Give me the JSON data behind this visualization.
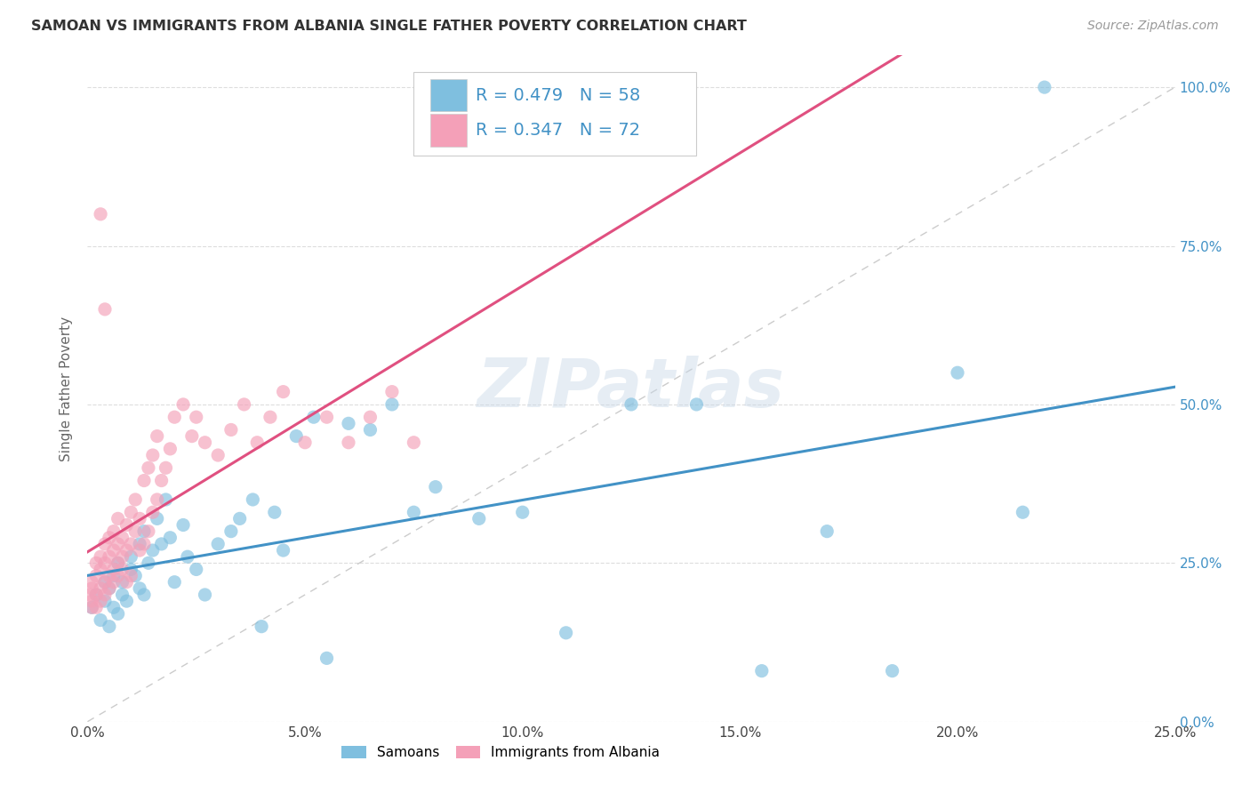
{
  "title": "SAMOAN VS IMMIGRANTS FROM ALBANIA SINGLE FATHER POVERTY CORRELATION CHART",
  "source": "Source: ZipAtlas.com",
  "ylabel_label": "Single Father Poverty",
  "legend_label1": "Samoans",
  "legend_label2": "Immigrants from Albania",
  "R1": 0.479,
  "N1": 58,
  "R2": 0.347,
  "N2": 72,
  "color_blue": "#7fbfdf",
  "color_pink": "#f4a0b8",
  "color_blue_text": "#4292c6",
  "color_pink_line": "#e05080",
  "blue_scatter_x": [
    0.001,
    0.002,
    0.003,
    0.004,
    0.004,
    0.005,
    0.005,
    0.006,
    0.006,
    0.007,
    0.007,
    0.008,
    0.008,
    0.009,
    0.01,
    0.01,
    0.011,
    0.012,
    0.012,
    0.013,
    0.013,
    0.014,
    0.015,
    0.016,
    0.017,
    0.018,
    0.019,
    0.02,
    0.022,
    0.023,
    0.025,
    0.027,
    0.03,
    0.033,
    0.035,
    0.038,
    0.04,
    0.043,
    0.045,
    0.048,
    0.052,
    0.055,
    0.06,
    0.065,
    0.07,
    0.075,
    0.08,
    0.09,
    0.1,
    0.11,
    0.125,
    0.14,
    0.155,
    0.17,
    0.185,
    0.2,
    0.215,
    0.22
  ],
  "blue_scatter_y": [
    0.18,
    0.2,
    0.16,
    0.19,
    0.22,
    0.15,
    0.21,
    0.18,
    0.23,
    0.17,
    0.25,
    0.2,
    0.22,
    0.19,
    0.24,
    0.26,
    0.23,
    0.21,
    0.28,
    0.2,
    0.3,
    0.25,
    0.27,
    0.32,
    0.28,
    0.35,
    0.29,
    0.22,
    0.31,
    0.26,
    0.24,
    0.2,
    0.28,
    0.3,
    0.32,
    0.35,
    0.15,
    0.33,
    0.27,
    0.45,
    0.48,
    0.1,
    0.47,
    0.46,
    0.5,
    0.33,
    0.37,
    0.32,
    0.33,
    0.14,
    0.5,
    0.5,
    0.08,
    0.3,
    0.08,
    0.55,
    0.33,
    1.0
  ],
  "pink_scatter_x": [
    0.0005,
    0.001,
    0.001,
    0.001,
    0.001,
    0.002,
    0.002,
    0.002,
    0.002,
    0.003,
    0.003,
    0.003,
    0.003,
    0.004,
    0.004,
    0.004,
    0.004,
    0.005,
    0.005,
    0.005,
    0.005,
    0.006,
    0.006,
    0.006,
    0.006,
    0.007,
    0.007,
    0.007,
    0.007,
    0.008,
    0.008,
    0.008,
    0.009,
    0.009,
    0.009,
    0.01,
    0.01,
    0.01,
    0.011,
    0.011,
    0.012,
    0.012,
    0.013,
    0.013,
    0.014,
    0.014,
    0.015,
    0.015,
    0.016,
    0.016,
    0.017,
    0.018,
    0.019,
    0.02,
    0.022,
    0.024,
    0.025,
    0.027,
    0.03,
    0.033,
    0.036,
    0.039,
    0.042,
    0.045,
    0.05,
    0.055,
    0.06,
    0.065,
    0.07,
    0.075,
    0.003,
    0.004
  ],
  "pink_scatter_y": [
    0.2,
    0.18,
    0.21,
    0.19,
    0.22,
    0.2,
    0.23,
    0.18,
    0.25,
    0.21,
    0.24,
    0.19,
    0.26,
    0.22,
    0.25,
    0.2,
    0.28,
    0.23,
    0.26,
    0.21,
    0.29,
    0.24,
    0.27,
    0.22,
    0.3,
    0.25,
    0.28,
    0.23,
    0.32,
    0.26,
    0.29,
    0.24,
    0.31,
    0.27,
    0.22,
    0.33,
    0.28,
    0.23,
    0.35,
    0.3,
    0.32,
    0.27,
    0.38,
    0.28,
    0.4,
    0.3,
    0.42,
    0.33,
    0.45,
    0.35,
    0.38,
    0.4,
    0.43,
    0.48,
    0.5,
    0.45,
    0.48,
    0.44,
    0.42,
    0.46,
    0.5,
    0.44,
    0.48,
    0.52,
    0.44,
    0.48,
    0.44,
    0.48,
    0.52,
    0.44,
    0.8,
    0.65
  ],
  "xmin": 0.0,
  "xmax": 0.25,
  "ymin": 0.0,
  "ymax": 1.05,
  "watermark": "ZIPatlas",
  "diagonal_line_color": "#cccccc",
  "grid_color": "#dddddd"
}
